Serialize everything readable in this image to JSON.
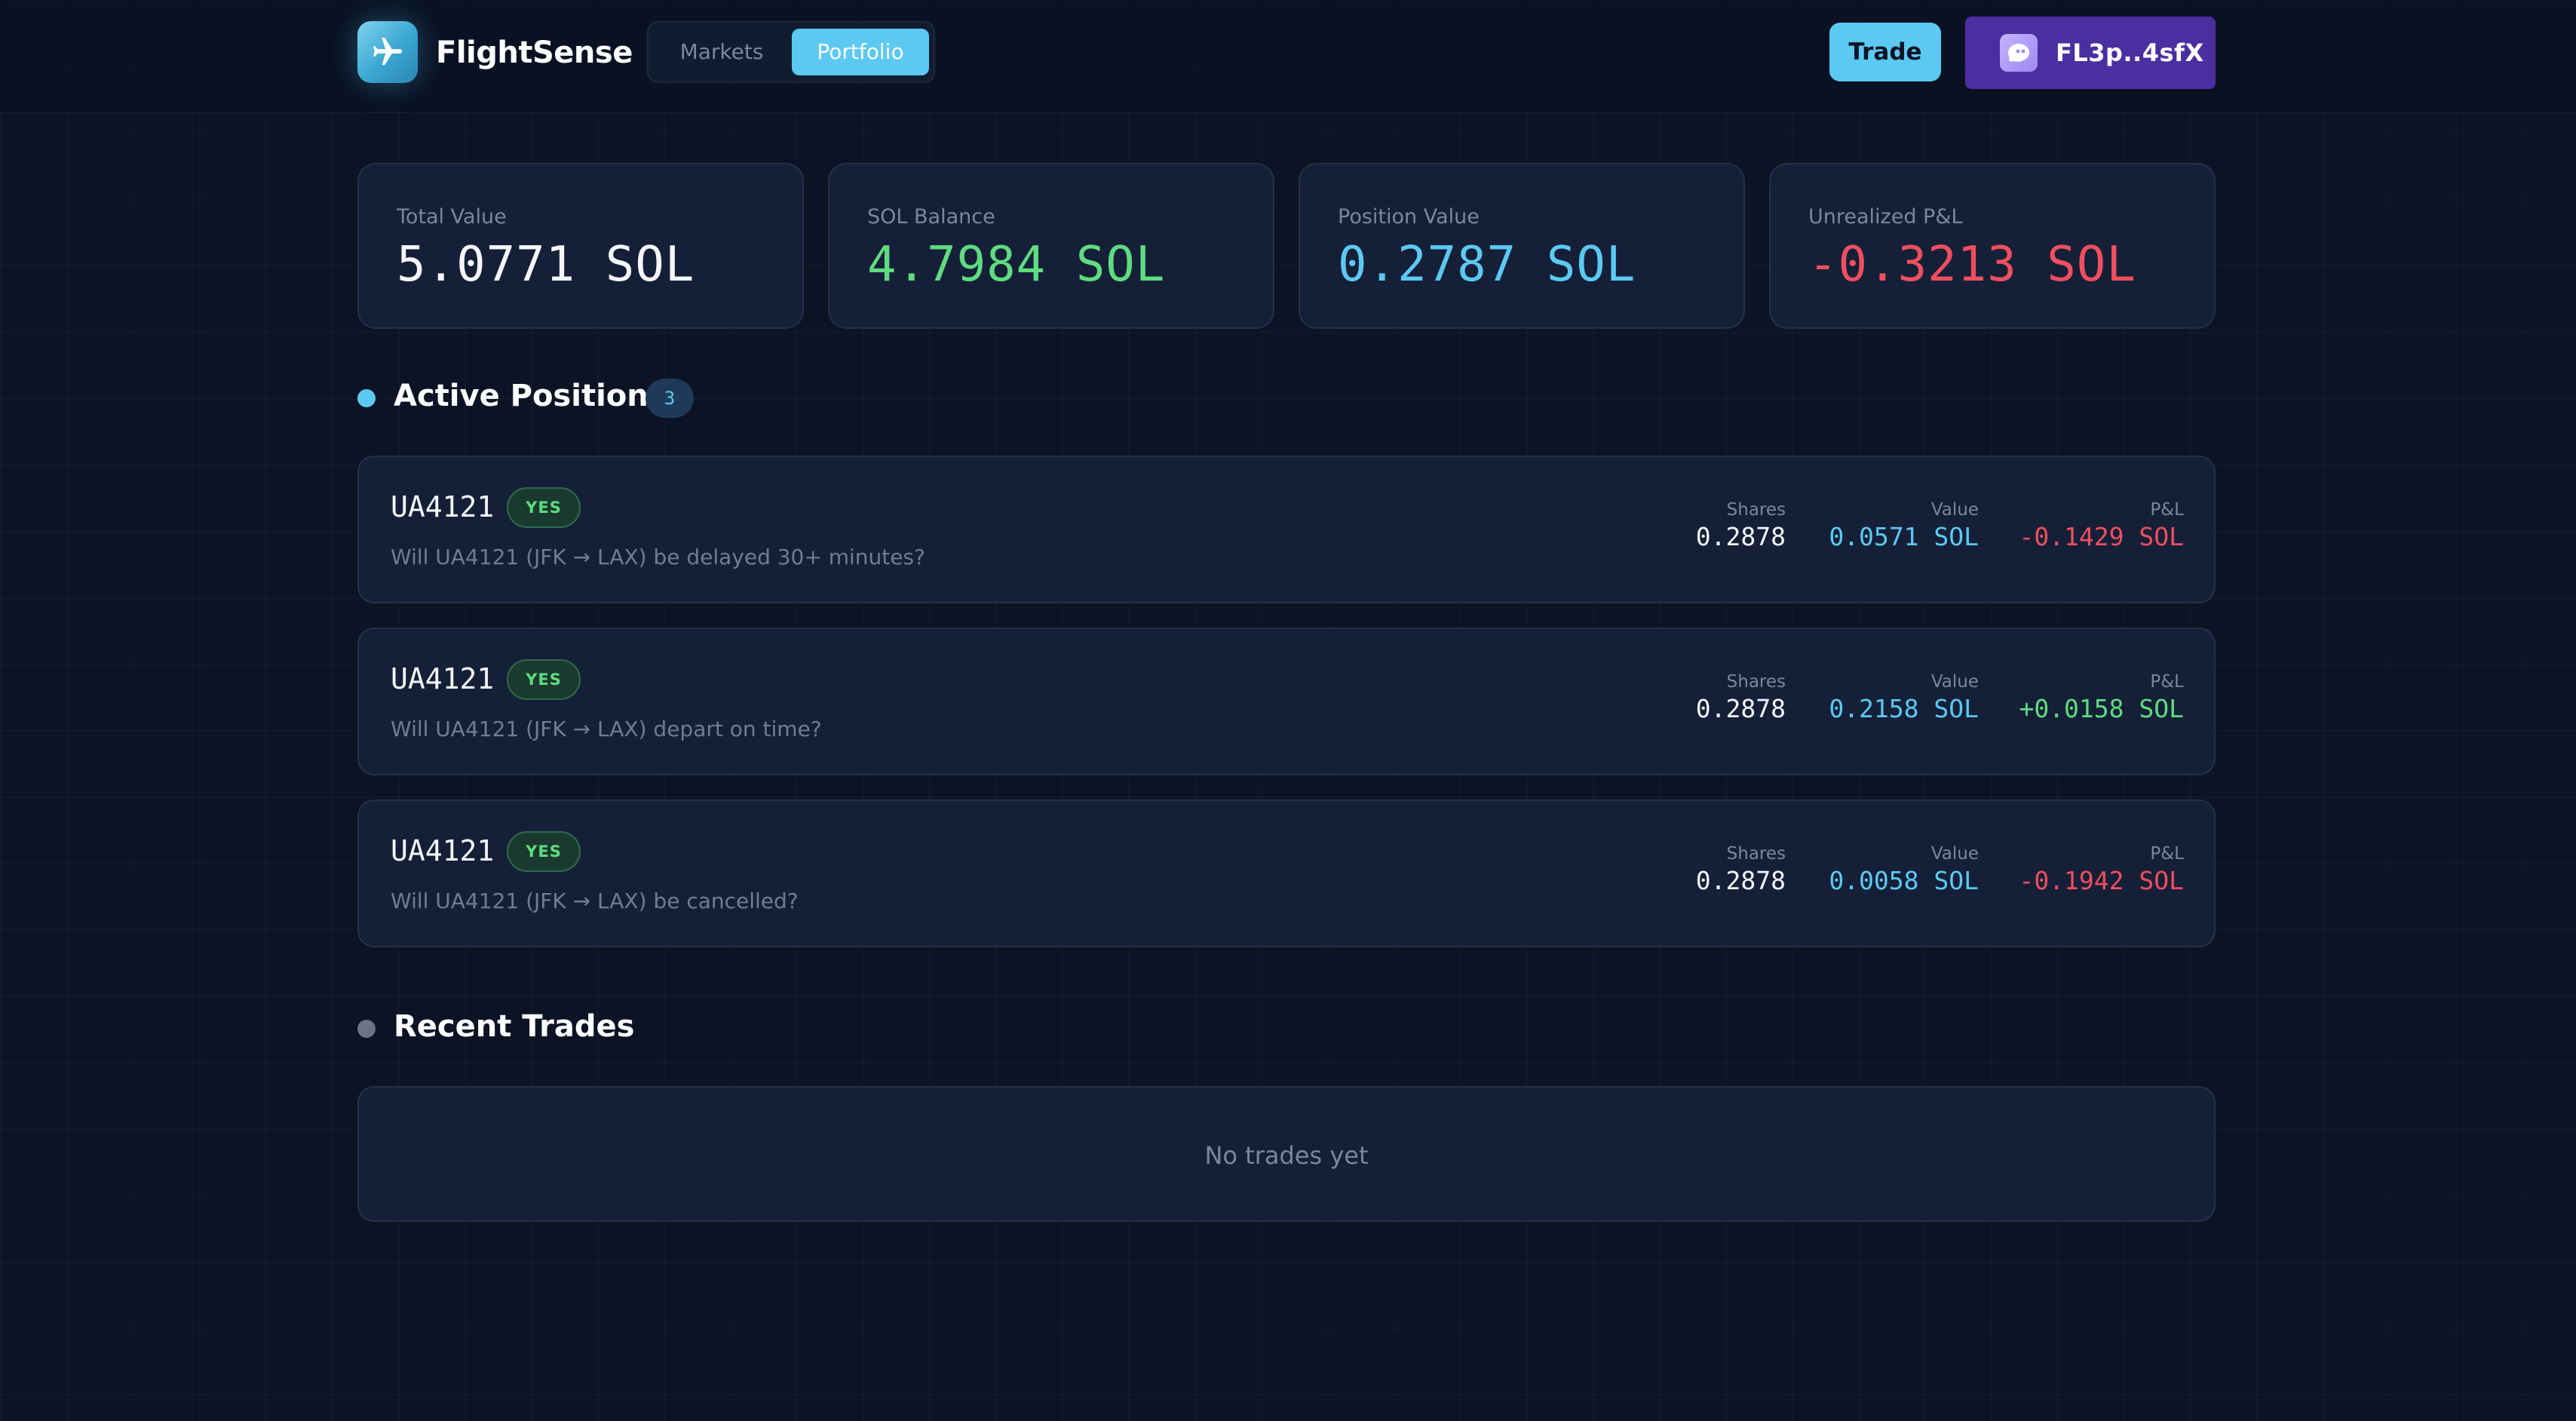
{
  "header": {
    "brand": "FlightSense",
    "tabs": [
      {
        "label": "Markets",
        "active": false
      },
      {
        "label": "Portfolio",
        "active": true
      }
    ],
    "trade_label": "Trade",
    "wallet_label": "FL3p..4sfX",
    "logo_icon": "airplane-icon",
    "wallet_icon": "phantom-ghost-icon"
  },
  "stats": [
    {
      "label": "Total Value",
      "value": "5.0771 SOL",
      "color": "#f4f6fb"
    },
    {
      "label": "SOL Balance",
      "value": "4.7984 SOL",
      "color": "#5fdc7f"
    },
    {
      "label": "Position Value",
      "value": "0.2787 SOL",
      "color": "#5cc9f2"
    },
    {
      "label": "Unrealized P&L",
      "value": "-0.3213 SOL",
      "color": "#ef4f5f"
    }
  ],
  "positions_section": {
    "title": "Active Positions",
    "count": "3",
    "dot_color": "#5cc9f2"
  },
  "metric_labels": {
    "shares": "Shares",
    "value": "Value",
    "pnl": "P&L"
  },
  "positions": [
    {
      "flight": "UA4121",
      "side": "YES",
      "question": "Will UA4121 (JFK → LAX) be delayed 30+ minutes?",
      "shares": "0.2878",
      "value": "0.0571 SOL",
      "pnl": "-0.1429 SOL",
      "pnl_color": "#ef4f5f"
    },
    {
      "flight": "UA4121",
      "side": "YES",
      "question": "Will UA4121 (JFK → LAX) depart on time?",
      "shares": "0.2878",
      "value": "0.2158 SOL",
      "pnl": "+0.0158 SOL",
      "pnl_color": "#5fdc7f"
    },
    {
      "flight": "UA4121",
      "side": "YES",
      "question": "Will UA4121 (JFK → LAX) be cancelled?",
      "shares": "0.2878",
      "value": "0.0058 SOL",
      "pnl": "-0.1942 SOL",
      "pnl_color": "#ef4f5f"
    }
  ],
  "trades_section": {
    "title": "Recent Trades",
    "empty_text": "No trades yet",
    "dot_color": "#6b7487"
  }
}
